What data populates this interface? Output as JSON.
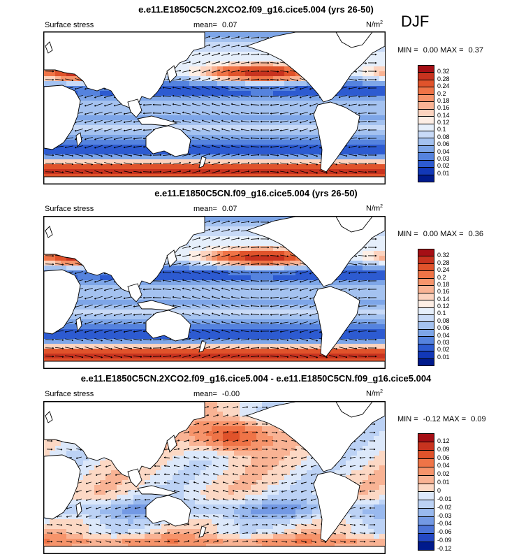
{
  "season": "DJF",
  "colors": {
    "land": "#ffffff",
    "coast": "#000000",
    "arrow": "#000000"
  },
  "panels": [
    {
      "title": "e.e11.E1850C5CN.2XCO2.f09_g16.cice5.004 (yrs 26-50)",
      "variable": "Surface stress",
      "mean_label": "mean=",
      "mean_value": "0.07",
      "units_base": "N/m",
      "units_exp": "2",
      "min_label": "MIN =",
      "min_value": "0.00",
      "max_label": "MAX =",
      "max_value": "0.37",
      "colorbar_labels": [
        "0.32",
        "0.28",
        "0.24",
        "0.2",
        "0.18",
        "0.16",
        "0.14",
        "0.12",
        "0.1",
        "0.08",
        "0.06",
        "0.04",
        "0.03",
        "0.02",
        "0.01"
      ],
      "colorbar_colors": [
        "#a50f15",
        "#c8331f",
        "#e0532b",
        "#ef7447",
        "#f6946b",
        "#f9b394",
        "#fcd3bf",
        "#fdeee5",
        "#e6effb",
        "#c8daf7",
        "#a4c2f0",
        "#7ea6e8",
        "#5583de",
        "#2d5bd1",
        "#1238b8",
        "#001a8c"
      ],
      "pattern": "abs"
    },
    {
      "title": "e.e11.E1850C5CN.f09_g16.cice5.004 (yrs 26-50)",
      "variable": "Surface stress",
      "mean_label": "mean=",
      "mean_value": "0.07",
      "units_base": "N/m",
      "units_exp": "2",
      "min_label": "MIN =",
      "min_value": "0.00",
      "max_label": "MAX =",
      "max_value": "0.36",
      "colorbar_labels": [
        "0.32",
        "0.28",
        "0.24",
        "0.2",
        "0.18",
        "0.16",
        "0.14",
        "0.12",
        "0.1",
        "0.08",
        "0.06",
        "0.04",
        "0.03",
        "0.02",
        "0.01"
      ],
      "colorbar_colors": [
        "#a50f15",
        "#c8331f",
        "#e0532b",
        "#ef7447",
        "#f6946b",
        "#f9b394",
        "#fcd3bf",
        "#fdeee5",
        "#e6effb",
        "#c8daf7",
        "#a4c2f0",
        "#7ea6e8",
        "#5583de",
        "#2d5bd1",
        "#1238b8",
        "#001a8c"
      ],
      "pattern": "abs"
    },
    {
      "title": "e.e11.E1850C5CN.2XCO2.f09_g16.cice5.004 - e.e11.E1850C5CN.f09_g16.cice5.004",
      "variable": "Surface stress",
      "mean_label": "mean=",
      "mean_value": "-0.00",
      "units_base": "N/m",
      "units_exp": "2",
      "min_label": "MIN =",
      "min_value": "-0.12",
      "max_label": "MAX =",
      "max_value": "0.09",
      "colorbar_labels": [
        "0.12",
        "0.09",
        "0.06",
        "0.04",
        "0.02",
        "0.01",
        "0",
        "-0.01",
        "-0.02",
        "-0.03",
        "-0.04",
        "-0.06",
        "-0.09",
        "-0.12"
      ],
      "colorbar_colors": [
        "#a50f15",
        "#c8331f",
        "#e0532b",
        "#ef7447",
        "#f6946b",
        "#f9b394",
        "#fcd8c4",
        "#dce8fa",
        "#bcd2f5",
        "#99b9ee",
        "#7399e4",
        "#4c74d8",
        "#2448c4",
        "#001a8c"
      ],
      "pattern": "diff"
    }
  ]
}
